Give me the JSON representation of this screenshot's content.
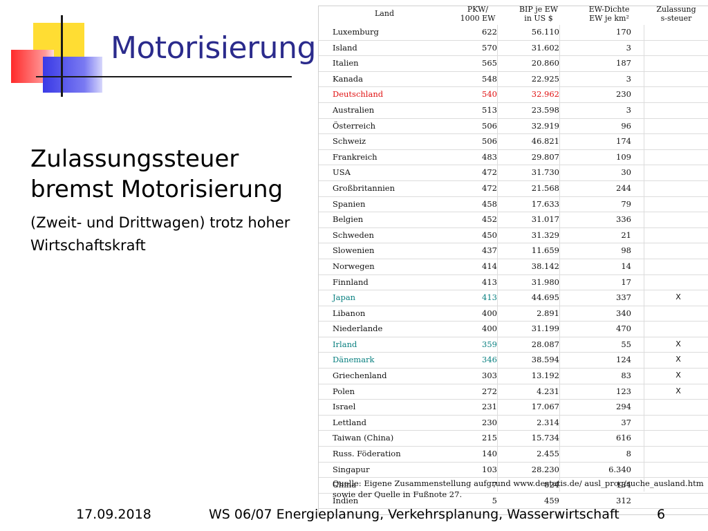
{
  "slide": {
    "title": "Motorisierung",
    "heading_line1": "Zulassungssteuer",
    "heading_line2": "bremst Motorisierung",
    "subtext": "(Zweit- und Drittwagen) trotz hoher Wirtschaftskraft"
  },
  "table": {
    "headers": {
      "land": "Land",
      "pkw": "PKW/\n1000 EW",
      "bip": "BIP je EW\nin US $",
      "ew": "EW-Dichte\nEW je km²",
      "zul": "Zulassung\ns-steuer"
    },
    "rows": [
      {
        "land": "Luxemburg",
        "pkw": "622",
        "bip": "56.110",
        "ew": "170",
        "zul": ""
      },
      {
        "land": "Island",
        "pkw": "570",
        "bip": "31.602",
        "ew": "3",
        "zul": ""
      },
      {
        "land": "Italien",
        "pkw": "565",
        "bip": "20.860",
        "ew": "187",
        "zul": ""
      },
      {
        "land": "Kanada",
        "pkw": "548",
        "bip": "22.925",
        "ew": "3",
        "zul": ""
      },
      {
        "land": "Deutschland",
        "pkw": "540",
        "bip": "32.962",
        "ew": "230",
        "zul": "",
        "hl": "red"
      },
      {
        "land": "Australien",
        "pkw": "513",
        "bip": "23.598",
        "ew": "3",
        "zul": ""
      },
      {
        "land": "Österreich",
        "pkw": "506",
        "bip": "32.919",
        "ew": "96",
        "zul": ""
      },
      {
        "land": "Schweiz",
        "pkw": "506",
        "bip": "46.821",
        "ew": "174",
        "zul": ""
      },
      {
        "land": "Frankreich",
        "pkw": "483",
        "bip": "29.807",
        "ew": "109",
        "zul": ""
      },
      {
        "land": "USA",
        "pkw": "472",
        "bip": "31.730",
        "ew": "30",
        "zul": ""
      },
      {
        "land": "Großbritannien",
        "pkw": "472",
        "bip": "21.568",
        "ew": "244",
        "zul": ""
      },
      {
        "land": "Spanien",
        "pkw": "458",
        "bip": "17.633",
        "ew": "79",
        "zul": ""
      },
      {
        "land": "Belgien",
        "pkw": "452",
        "bip": "31.017",
        "ew": "336",
        "zul": ""
      },
      {
        "land": "Schweden",
        "pkw": "450",
        "bip": "31.329",
        "ew": "21",
        "zul": ""
      },
      {
        "land": "Slowenien",
        "pkw": "437",
        "bip": "11.659",
        "ew": "98",
        "zul": ""
      },
      {
        "land": "Norwegen",
        "pkw": "414",
        "bip": "38.142",
        "ew": "14",
        "zul": ""
      },
      {
        "land": "Finnland",
        "pkw": "413",
        "bip": "31.980",
        "ew": "17",
        "zul": ""
      },
      {
        "land": "Japan",
        "pkw": "413",
        "bip": "44.695",
        "ew": "337",
        "zul": "X",
        "hl": "teal"
      },
      {
        "land": "Libanon",
        "pkw": "400",
        "bip": "2.891",
        "ew": "340",
        "zul": ""
      },
      {
        "land": "Niederlande",
        "pkw": "400",
        "bip": "31.199",
        "ew": "470",
        "zul": ""
      },
      {
        "land": "Irland",
        "pkw": "359",
        "bip": "28.087",
        "ew": "55",
        "zul": "X",
        "hl": "teal"
      },
      {
        "land": "Dänemark",
        "pkw": "346",
        "bip": "38.594",
        "ew": "124",
        "zul": "X",
        "hl": "teal"
      },
      {
        "land": "Griechenland",
        "pkw": "303",
        "bip": "13.192",
        "ew": "83",
        "zul": "X"
      },
      {
        "land": "Polen",
        "pkw": "272",
        "bip": "4.231",
        "ew": "123",
        "zul": "X"
      },
      {
        "land": "Israel",
        "pkw": "231",
        "bip": "17.067",
        "ew": "294",
        "zul": ""
      },
      {
        "land": "Lettland",
        "pkw": "230",
        "bip": "2.314",
        "ew": "37",
        "zul": ""
      },
      {
        "land": "Taiwan (China)",
        "pkw": "215",
        "bip": "15.734",
        "ew": "616",
        "zul": ""
      },
      {
        "land": "Russ. Föderation",
        "pkw": "140",
        "bip": "2.455",
        "ew": "8",
        "zul": ""
      },
      {
        "land": "Singapur",
        "pkw": "103",
        "bip": "28.230",
        "ew": "6.340",
        "zul": ""
      },
      {
        "land": "China",
        "pkw": "7",
        "bip": "824",
        "ew": "134",
        "zul": ""
      },
      {
        "land": "Indien",
        "pkw": "5",
        "bip": "459",
        "ew": "312",
        "zul": ""
      }
    ],
    "source": "Quelle: Eigene Zusammenstellung aufgrund  www.destatis.de/ ausl_prog/suche_ausland.htm sowie der Quelle in Fußnote 27."
  },
  "colors": {
    "title": "#2b2b8c",
    "highlight_red": "#e01010",
    "highlight_teal": "#0a8080"
  },
  "footer": {
    "date": "17.09.2018",
    "course": "WS 06/07 Energieplanung, Verkehrsplanung, Wasserwirtschaft",
    "page": "6"
  }
}
